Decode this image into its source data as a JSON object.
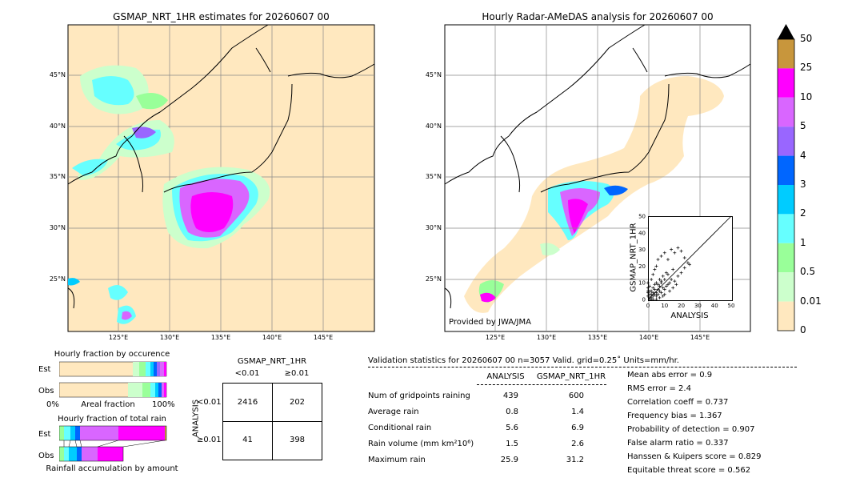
{
  "left_map": {
    "title": "GSMAP_NRT_1HR estimates for 20260607 00",
    "lat_labels": [
      "45°N",
      "40°N",
      "35°N",
      "30°N",
      "25°N"
    ],
    "lon_labels": [
      "125°E",
      "130°E",
      "135°E",
      "140°E",
      "145°E"
    ]
  },
  "right_map": {
    "title": "Hourly Radar-AMeDAS analysis for 20260607 00",
    "lat_labels": [
      "45°N",
      "40°N",
      "35°N",
      "30°N",
      "25°N"
    ],
    "lon_labels": [
      "125°E",
      "130°E",
      "135°E",
      "140°E",
      "145°E"
    ],
    "credit": "Provided by JWA/JMA"
  },
  "colorbar": {
    "labels": [
      "50",
      "25",
      "10",
      "5",
      "4",
      "3",
      "2",
      "1",
      "0.5",
      "0.01",
      "0"
    ],
    "colors": [
      "#c8963c",
      "#ff00ff",
      "#d966ff",
      "#9966ff",
      "#0066ff",
      "#00ccff",
      "#66ffff",
      "#99ff99",
      "#ccffcc",
      "#ffe8bf"
    ],
    "over_color": "#000000"
  },
  "chart_data": [
    {
      "type": "scatter",
      "title": "",
      "xlabel": "ANALYSIS",
      "ylabel": "GSMAP_NRT_1HR",
      "xlim": [
        0,
        50
      ],
      "ylim": [
        0,
        50
      ],
      "xticks": [
        "0",
        "10",
        "20",
        "30",
        "40",
        "50"
      ],
      "yticks": [
        "0",
        "10",
        "20",
        "30",
        "40",
        "50"
      ],
      "reference_line": "y=x",
      "points": [
        [
          1,
          1
        ],
        [
          2,
          3
        ],
        [
          3,
          2
        ],
        [
          4,
          6
        ],
        [
          5,
          4
        ],
        [
          6,
          9
        ],
        [
          7,
          5
        ],
        [
          8,
          10
        ],
        [
          9,
          7
        ],
        [
          10,
          12
        ],
        [
          11,
          8
        ],
        [
          12,
          15
        ],
        [
          13,
          10
        ],
        [
          14,
          12
        ],
        [
          15,
          18
        ],
        [
          16,
          11
        ],
        [
          18,
          14
        ],
        [
          20,
          16
        ],
        [
          22,
          19
        ],
        [
          25,
          21
        ],
        [
          1,
          8
        ],
        [
          2,
          12
        ],
        [
          3,
          15
        ],
        [
          4,
          18
        ],
        [
          5,
          20
        ],
        [
          6,
          24
        ],
        [
          8,
          26
        ],
        [
          10,
          28
        ],
        [
          12,
          24
        ],
        [
          14,
          30
        ],
        [
          16,
          28
        ],
        [
          18,
          31
        ],
        [
          20,
          29
        ],
        [
          22,
          25
        ],
        [
          24,
          22
        ],
        [
          2,
          5
        ],
        [
          3,
          7
        ],
        [
          4,
          3
        ],
        [
          5,
          10
        ],
        [
          6,
          6
        ],
        [
          7,
          12
        ],
        [
          8,
          4
        ],
        [
          9,
          14
        ],
        [
          10,
          6
        ],
        [
          11,
          16
        ],
        [
          12,
          9
        ],
        [
          0,
          4
        ],
        [
          0,
          7
        ],
        [
          0,
          10
        ],
        [
          1,
          3
        ],
        [
          1,
          5
        ],
        [
          2,
          1
        ],
        [
          3,
          4
        ],
        [
          4,
          9
        ],
        [
          5,
          2
        ],
        [
          6,
          3
        ],
        [
          7,
          8
        ],
        [
          8,
          11
        ],
        [
          0,
          2
        ],
        [
          0,
          5
        ],
        [
          1,
          0
        ],
        [
          2,
          0
        ],
        [
          3,
          0
        ],
        [
          5,
          0
        ],
        [
          7,
          1
        ],
        [
          9,
          2
        ],
        [
          10,
          3
        ],
        [
          13,
          5
        ],
        [
          15,
          7
        ],
        [
          17,
          9
        ]
      ]
    },
    {
      "type": "bar",
      "title": "Hourly fraction by occurence",
      "categories": [
        "Est",
        "Obs"
      ],
      "xlabel": "Areal fraction",
      "x_tick_labels": [
        "0%",
        "100%"
      ]
    },
    {
      "type": "bar",
      "title": "Hourly fraction of total rain",
      "categories": [
        "Est",
        "Obs"
      ],
      "xlabel": "Rainfall accumulation by amount"
    },
    {
      "type": "table",
      "title": "GSMAP_NRT_1HR",
      "col_headers": [
        "<0.01",
        "≥0.01"
      ],
      "row_axis_label": "ANALYSIS",
      "row_headers": [
        "<0.01",
        "≥0.01"
      ],
      "cells": [
        [
          "2416",
          "202"
        ],
        [
          "41",
          "398"
        ]
      ]
    }
  ],
  "validation": {
    "header": "Validation statistics for 20260607 00  n=3057 Valid. grid=0.25˚ Units=mm/hr.",
    "col_analysis": "ANALYSIS",
    "col_gsmap": "GSMAP_NRT_1HR",
    "rows": [
      {
        "label": "Num of gridpoints raining",
        "a": "439",
        "g": "600"
      },
      {
        "label": "Average rain",
        "a": "0.8",
        "g": "1.4"
      },
      {
        "label": "Conditional rain",
        "a": "5.6",
        "g": "6.9"
      },
      {
        "label": "Rain volume (mm km²10⁶)",
        "a": "1.5",
        "g": "2.6"
      },
      {
        "label": "Maximum rain",
        "a": "25.9",
        "g": "31.2"
      }
    ],
    "scores": [
      "Mean abs error =    0.9",
      "RMS error =    2.4",
      "Correlation coeff =  0.737",
      "Frequency bias =  1.367",
      "Probability of detection =  0.907",
      "False alarm ratio =  0.337",
      "Hanssen & Kuipers score =  0.829",
      "Equitable threat score =  0.562"
    ]
  }
}
